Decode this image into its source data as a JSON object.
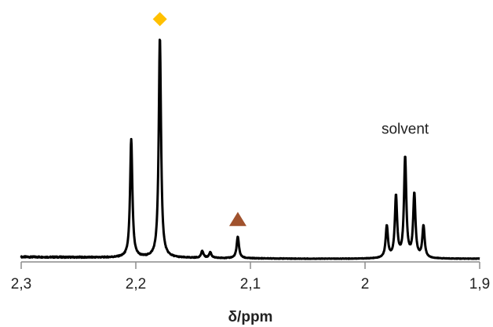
{
  "chart_data": {
    "type": "line",
    "title": "",
    "xlabel": "δ/ppm",
    "ylabel": "",
    "x_reversed": true,
    "xlim": [
      2.3,
      1.9
    ],
    "ylim": [
      0,
      1
    ],
    "grid": false,
    "legend": "none",
    "ticks": [
      {
        "value": 2.3,
        "label": "2,3"
      },
      {
        "value": 2.2,
        "label": "2,2"
      },
      {
        "value": 2.1,
        "label": "2,1"
      },
      {
        "value": 2.0,
        "label": "2"
      },
      {
        "value": 1.9,
        "label": "1,9"
      }
    ],
    "series": [
      {
        "color": "#000000",
        "peaks": [
          {
            "x": 2.204,
            "height": 0.52
          },
          {
            "x": 2.179,
            "height": 0.97
          },
          {
            "x": 2.142,
            "height": 0.03
          },
          {
            "x": 2.135,
            "height": 0.025
          },
          {
            "x": 2.111,
            "height": 0.095
          },
          {
            "x": 1.981,
            "height": 0.14
          },
          {
            "x": 1.973,
            "height": 0.27
          },
          {
            "x": 1.965,
            "height": 0.44
          },
          {
            "x": 1.957,
            "height": 0.28
          },
          {
            "x": 1.949,
            "height": 0.14
          }
        ]
      }
    ],
    "annotations": [
      {
        "kind": "marker",
        "shape": "diamond",
        "color": "#FFC000",
        "x": 2.179,
        "above_peak": true
      },
      {
        "kind": "marker",
        "shape": "triangle",
        "color": "#A0522D",
        "x": 2.111,
        "above_peak": true
      },
      {
        "kind": "text",
        "text": "solvent",
        "x": 1.965,
        "above_peak": true
      }
    ]
  }
}
